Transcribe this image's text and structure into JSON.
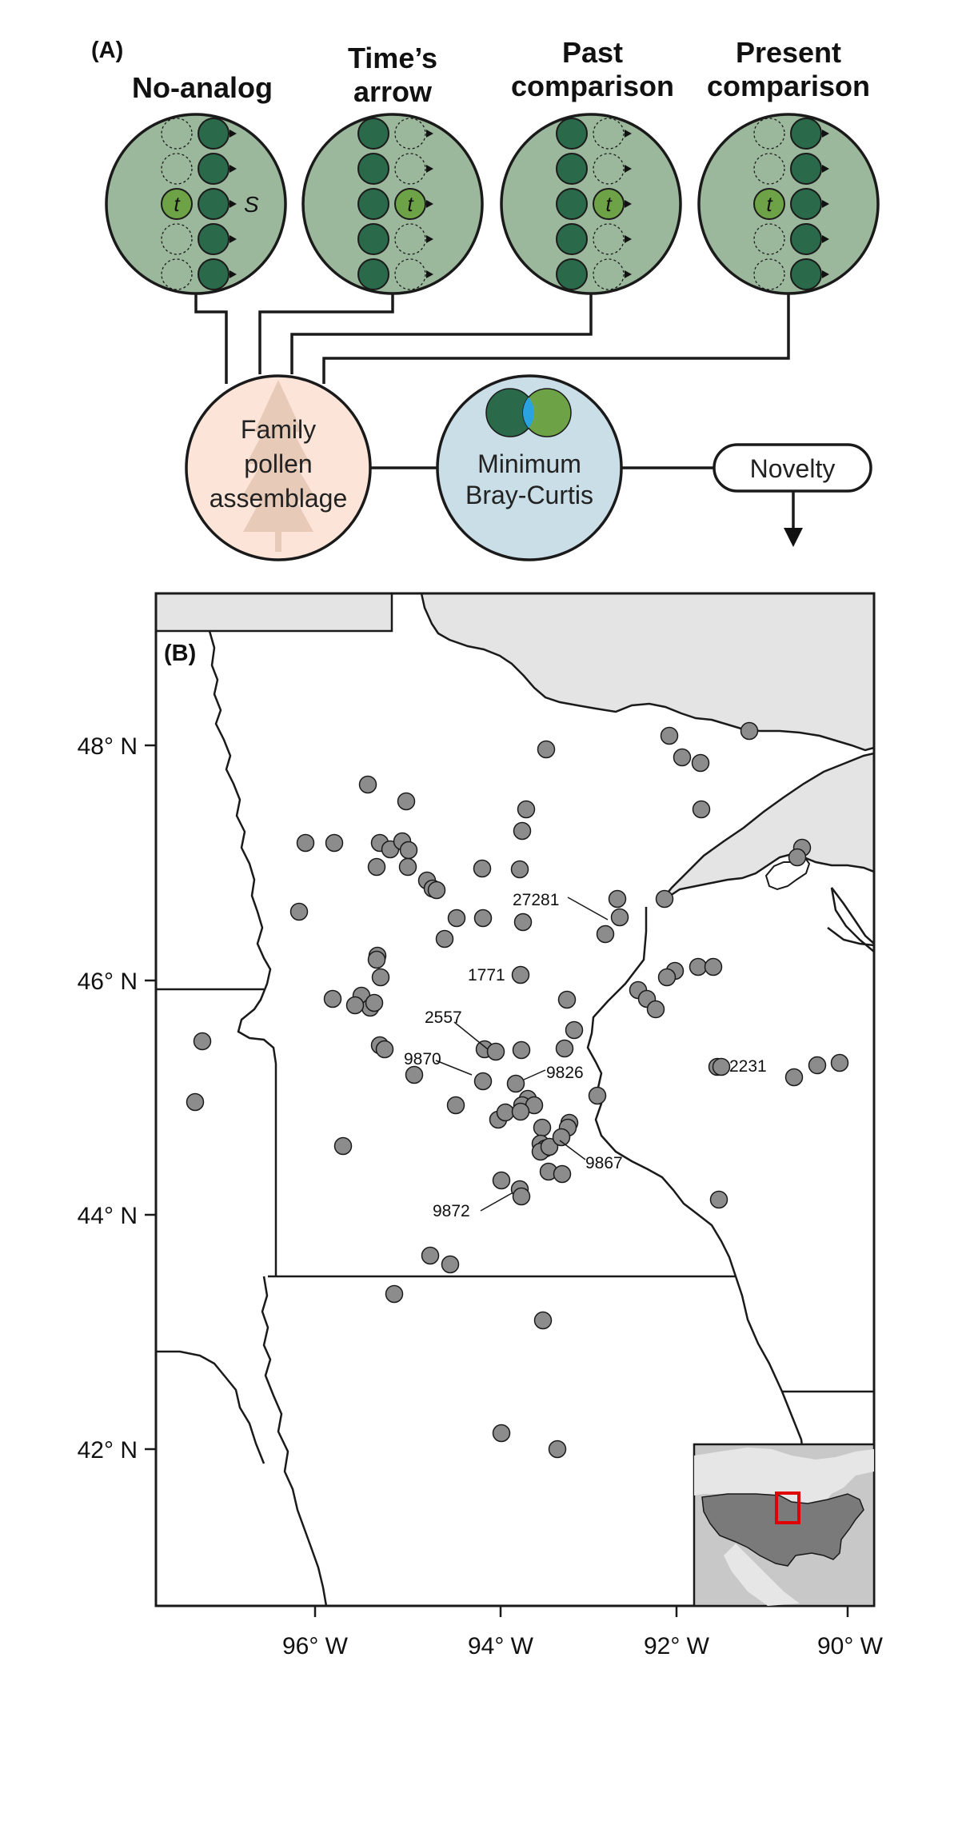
{
  "panel_a": {
    "label": "(A)",
    "methods": [
      {
        "title_lines": [
          "No-analog"
        ],
        "target": 2,
        "comparison": "present",
        "s_label": "S"
      },
      {
        "title_lines": [
          "Time’s",
          "arrow"
        ],
        "target": 2,
        "comparison": "past"
      },
      {
        "title_lines": [
          "Past",
          "comparison"
        ],
        "target": 2,
        "comparison": "past"
      },
      {
        "title_lines": [
          "Present",
          "comparison"
        ],
        "target": 2,
        "comparison": "present"
      }
    ],
    "target_letter": "t",
    "assemblage_lines": [
      "Family",
      "pollen",
      "assemblage"
    ],
    "metric_lines": [
      "Minimum",
      "Bray-Curtis"
    ],
    "output_label": "Novelty",
    "colors": {
      "method_circle": "#9cb89c",
      "sample_dark": "#2a6a4a",
      "sample_target": "#6ea247",
      "assemblage_bg": "#fce5d8",
      "metric_bg": "#c9dee6",
      "overlap": "#29a4e0"
    }
  },
  "panel_b": {
    "label": "(B)",
    "x_ticks": [
      "96° W",
      "94° W",
      "92° W",
      "90° W"
    ],
    "y_ticks": [
      "48° N",
      "46° N",
      "44° N",
      "42° N"
    ],
    "site_labels": [
      "27281",
      "1771",
      "2557",
      "9870",
      "9826",
      "9867",
      "9872",
      "2231"
    ],
    "colors": {
      "site_fill": "#8c8c8c",
      "water": "#e4e4e4",
      "inset_bg": "#c8c8c8",
      "inset_land": "#7a7a7a",
      "inset_box": "#e00000"
    }
  }
}
